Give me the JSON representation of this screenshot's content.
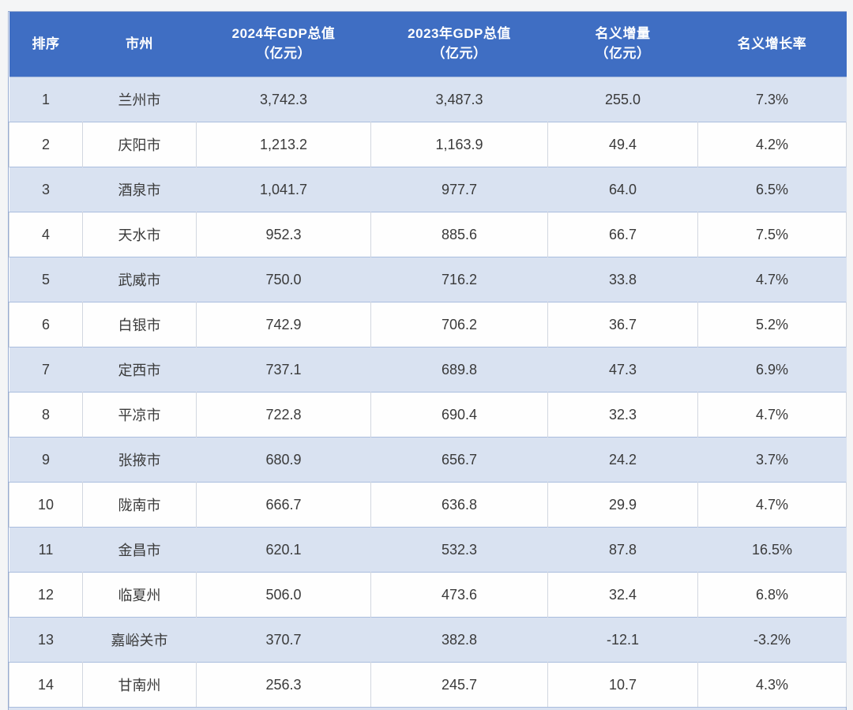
{
  "colors": {
    "header_bg": "#3f6ec3",
    "header_text": "#ffffff",
    "band_row_bg": "#d9e2f1",
    "plain_row_bg": "#fefefe",
    "outer_border": "#96abd2",
    "row_border": "#a9bdde",
    "cell_text": "#3a3a3a"
  },
  "chart_data": {
    "type": "table",
    "columns": [
      "排序",
      "市州",
      "2024年GDP总值\n（亿元）",
      "2023年GDP总值\n（亿元）",
      "名义增量\n（亿元）",
      "名义增长率"
    ],
    "column_ids": [
      "rank",
      "city",
      "gdp-2024",
      "gdp-2023",
      "nominal-increase",
      "nominal-growth-rate"
    ],
    "rows": [
      [
        "1",
        "兰州市",
        "3,742.3",
        "3,487.3",
        "255.0",
        "7.3%"
      ],
      [
        "2",
        "庆阳市",
        "1,213.2",
        "1,163.9",
        "49.4",
        "4.2%"
      ],
      [
        "3",
        "酒泉市",
        "1,041.7",
        "977.7",
        "64.0",
        "6.5%"
      ],
      [
        "4",
        "天水市",
        "952.3",
        "885.6",
        "66.7",
        "7.5%"
      ],
      [
        "5",
        "武威市",
        "750.0",
        "716.2",
        "33.8",
        "4.7%"
      ],
      [
        "6",
        "白银市",
        "742.9",
        "706.2",
        "36.7",
        "5.2%"
      ],
      [
        "7",
        "定西市",
        "737.1",
        "689.8",
        "47.3",
        "6.9%"
      ],
      [
        "8",
        "平凉市",
        "722.8",
        "690.4",
        "32.3",
        "4.7%"
      ],
      [
        "9",
        "张掖市",
        "680.9",
        "656.7",
        "24.2",
        "3.7%"
      ],
      [
        "10",
        "陇南市",
        "666.7",
        "636.8",
        "29.9",
        "4.7%"
      ],
      [
        "11",
        "金昌市",
        "620.1",
        "532.3",
        "87.8",
        "16.5%"
      ],
      [
        "12",
        "临夏州",
        "506.0",
        "473.6",
        "32.4",
        "6.8%"
      ],
      [
        "13",
        "嘉峪关市",
        "370.7",
        "382.8",
        "-12.1",
        "-3.2%"
      ],
      [
        "14",
        "甘南州",
        "256.3",
        "245.7",
        "10.7",
        "4.3%"
      ]
    ]
  }
}
